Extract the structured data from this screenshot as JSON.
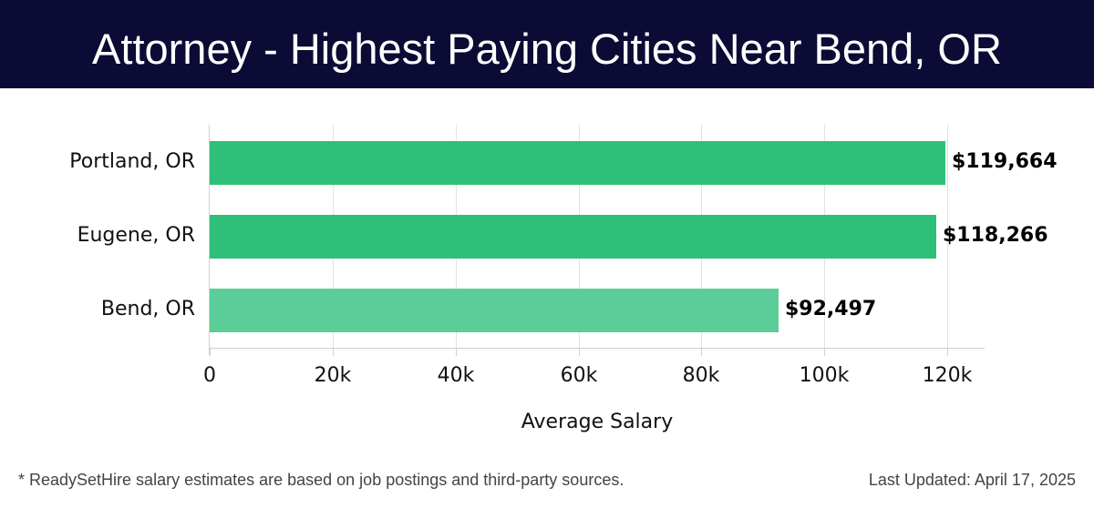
{
  "header": {
    "title": "Attorney - Highest Paying Cities Near Bend, OR"
  },
  "chart_data": {
    "type": "bar",
    "orientation": "horizontal",
    "title": "Attorney - Highest Paying Cities Near Bend, OR",
    "categories": [
      "Portland, OR",
      "Eugene, OR",
      "Bend, OR"
    ],
    "values": [
      119664,
      118266,
      92497
    ],
    "value_labels": [
      "$119,664",
      "$118,266",
      "$92,497"
    ],
    "bar_colors": [
      "#2ebf79",
      "#2ebf79",
      "#5acd98"
    ],
    "xlabel": "Average Salary",
    "ylabel": "",
    "xlim": [
      0,
      126000
    ],
    "xticks": [
      0,
      20000,
      40000,
      60000,
      80000,
      100000,
      120000
    ],
    "xtick_labels": [
      "0",
      "20k",
      "40k",
      "60k",
      "80k",
      "100k",
      "120k"
    ],
    "grid": true,
    "legend": null
  },
  "footer": {
    "note": "* ReadySetHire salary estimates are based on job postings and third-party sources.",
    "updated": "Last Updated: April 17, 2025"
  }
}
